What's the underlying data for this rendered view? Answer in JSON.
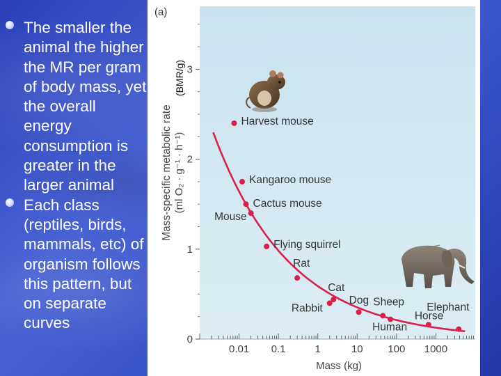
{
  "slide": {
    "bullets": [
      "The smaller the animal the higher the MR per gram of body mass, yet the overall energy consumption is greater in the larger animal",
      "Each class (reptiles, birds, mammals, etc) of organism follows this pattern, but on separate curves"
    ]
  },
  "chart_data": {
    "type": "line",
    "panel_label": "(a)",
    "ylabel": "Mass-specific metabolic rate",
    "ylabel_units": "(ml O₂ · g⁻¹ · h⁻¹)",
    "ylabel_note": "(BMR/g)",
    "xlabel": "Mass (kg)",
    "x_scale": "log",
    "xlim": [
      0.001,
      10000
    ],
    "ylim": [
      0,
      3.7
    ],
    "x_ticks": [
      "0.01",
      "0.1",
      "1",
      "10",
      "100",
      "1000"
    ],
    "y_ticks": [
      "0",
      "1",
      "2",
      "3"
    ],
    "series": [
      {
        "points": [
          {
            "label": "Harvest mouse",
            "x": 0.0075,
            "y": 2.4
          },
          {
            "label": "Kangaroo mouse",
            "x": 0.012,
            "y": 1.75
          },
          {
            "label": "Cactus mouse",
            "x": 0.015,
            "y": 1.5
          },
          {
            "label": "Mouse",
            "x": 0.02,
            "y": 1.4
          },
          {
            "label": "Flying squirrel",
            "x": 0.05,
            "y": 1.03
          },
          {
            "label": "Rat",
            "x": 0.3,
            "y": 0.68
          },
          {
            "label": "Cat",
            "x": 2.5,
            "y": 0.44
          },
          {
            "label": "Rabbit",
            "x": 2.0,
            "y": 0.4
          },
          {
            "label": "Dog",
            "x": 11,
            "y": 0.3
          },
          {
            "label": "Sheep",
            "x": 45,
            "y": 0.26
          },
          {
            "label": "Human",
            "x": 70,
            "y": 0.22
          },
          {
            "label": "Horse",
            "x": 650,
            "y": 0.16
          },
          {
            "label": "Elephant",
            "x": 3800,
            "y": 0.11
          }
        ]
      }
    ],
    "line_color": "#d9204a",
    "grid": false
  }
}
